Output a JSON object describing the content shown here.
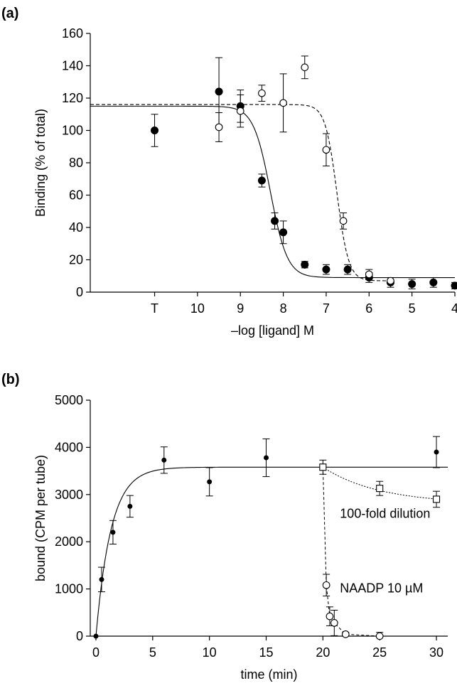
{
  "chart_data": [
    {
      "panel": "(a)",
      "type": "scatter",
      "xlabel": "–log [ligand] M",
      "ylabel": "Binding (% of total)",
      "xlim": [
        12.5,
        4
      ],
      "ylim": [
        0,
        160
      ],
      "yticks": [
        0,
        20,
        40,
        60,
        80,
        100,
        120,
        140,
        160
      ],
      "xticks": [
        {
          "label": "T",
          "value": 11
        },
        {
          "label": "10",
          "value": 10
        },
        {
          "label": "9",
          "value": 9
        },
        {
          "label": "8",
          "value": 8
        },
        {
          "label": "7",
          "value": 7
        },
        {
          "label": "6",
          "value": 6
        },
        {
          "label": "5",
          "value": 5
        },
        {
          "label": "4",
          "value": 4
        }
      ],
      "grid": false,
      "series": [
        {
          "marker": "filled-circle",
          "points": [
            {
              "x": 11,
              "y": 100,
              "err": 10
            },
            {
              "x": 9.5,
              "y": 124,
              "err": 21
            },
            {
              "x": 9.0,
              "y": 115,
              "err": 10
            },
            {
              "x": 8.5,
              "y": 69,
              "err": 4
            },
            {
              "x": 8.2,
              "y": 44,
              "err": 5
            },
            {
              "x": 8.0,
              "y": 37,
              "err": 7
            },
            {
              "x": 7.5,
              "y": 17,
              "err": 2
            },
            {
              "x": 7.0,
              "y": 14,
              "err": 3
            },
            {
              "x": 6.5,
              "y": 14,
              "err": 3
            },
            {
              "x": 6.0,
              "y": 9,
              "err": 3
            },
            {
              "x": 5.5,
              "y": 6,
              "err": 3
            },
            {
              "x": 5.0,
              "y": 5,
              "err": 3
            },
            {
              "x": 4.5,
              "y": 6,
              "err": 3
            },
            {
              "x": 4.0,
              "y": 4,
              "err": 2
            }
          ],
          "fit": {
            "style": "solid",
            "top": 115,
            "bottom": 9,
            "mid": 8.3,
            "slope": 2.2,
            "from": 12.5,
            "to": 4.0
          }
        },
        {
          "marker": "open-circle",
          "points": [
            {
              "x": 9.5,
              "y": 102,
              "err": 9
            },
            {
              "x": 9.0,
              "y": 112,
              "err": 10
            },
            {
              "x": 8.5,
              "y": 123,
              "err": 5
            },
            {
              "x": 8.0,
              "y": 117,
              "err": 18
            },
            {
              "x": 7.5,
              "y": 139,
              "err": 7
            },
            {
              "x": 7.0,
              "y": 88,
              "err": 10
            },
            {
              "x": 6.6,
              "y": 44,
              "err": 5
            },
            {
              "x": 6.0,
              "y": 11,
              "err": 3
            },
            {
              "x": 5.5,
              "y": 7,
              "err": 2
            }
          ],
          "fit": {
            "style": "dashed",
            "top": 116,
            "bottom": 7,
            "mid": 6.75,
            "slope": 3.2,
            "from": 12.5,
            "to": 5.5
          }
        }
      ]
    },
    {
      "panel": "(b)",
      "type": "line",
      "xlabel": "time (min)",
      "ylabel": "bound (CPM per tube)",
      "xlim": [
        -0.5,
        31
      ],
      "ylim": [
        0,
        5000
      ],
      "xticks": [
        0,
        5,
        10,
        15,
        20,
        25,
        30
      ],
      "yticks": [
        0,
        1000,
        2000,
        3000,
        4000,
        5000
      ],
      "grid": false,
      "series": [
        {
          "marker": "filled-dot",
          "points": [
            {
              "x": 0,
              "y": 0,
              "err": 0
            },
            {
              "x": 0.5,
              "y": 1200,
              "err": 260
            },
            {
              "x": 1.5,
              "y": 2200,
              "err": 250
            },
            {
              "x": 3,
              "y": 2750,
              "err": 230
            },
            {
              "x": 6,
              "y": 3730,
              "err": 280
            },
            {
              "x": 10,
              "y": 3270,
              "err": 300
            },
            {
              "x": 15,
              "y": 3780,
              "err": 400
            },
            {
              "x": 30,
              "y": 3900,
              "err": 330
            }
          ],
          "fit": {
            "style": "solid",
            "plateau": 3580,
            "k": 0.75,
            "from": 0,
            "to": 31
          }
        },
        {
          "marker": "open-square",
          "points": [
            {
              "x": 20,
              "y": 3580,
              "err": 150
            },
            {
              "x": 25,
              "y": 3130,
              "err": 150
            },
            {
              "x": 30,
              "y": 2900,
              "err": 170
            }
          ]
        },
        {
          "marker": "open-circle",
          "points": [
            {
              "x": 20.3,
              "y": 1080,
              "err": 230
            },
            {
              "x": 20.6,
              "y": 420,
              "err": 200
            },
            {
              "x": 21,
              "y": 280,
              "err": 270
            },
            {
              "x": 22,
              "y": 40,
              "err": 40
            },
            {
              "x": 25,
              "y": 0,
              "err": 80
            }
          ]
        }
      ],
      "annotations": [
        {
          "text": "100-fold dilution",
          "x": 21.5,
          "y": 2600
        },
        {
          "text": "NAADP 10 µM",
          "x": 21.5,
          "y": 1020
        }
      ]
    }
  ]
}
